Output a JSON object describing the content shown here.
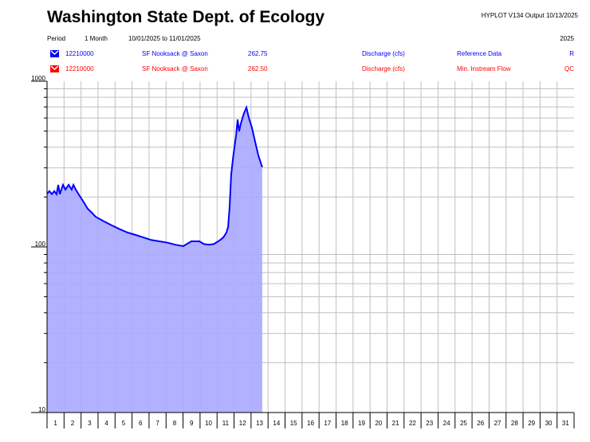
{
  "header": {
    "title": "Washington State Dept. of Ecology",
    "program": "HYPLOT V134  Output 10/13/2025",
    "period_label": "Period",
    "period_value": "1 Month",
    "date_range": "10/01/2025  to  11/01/2025",
    "year": "2025"
  },
  "legend": [
    {
      "site": "12210000",
      "name": "SF Nooksack @ Saxon",
      "value": "262.75",
      "param": "Discharge (cfs)",
      "type": "Reference Data",
      "code": "R",
      "color": "#0000ff"
    },
    {
      "site": "12210000",
      "name": "SF Nooksack @ Saxon",
      "value": "262.50",
      "param": "Discharge (cfs)",
      "type": "Min. Instream Flow",
      "code": "QC",
      "color": "#ff0000"
    }
  ],
  "chart_data": {
    "type": "area",
    "yscale": "log",
    "ylim": [
      10,
      1000
    ],
    "xlim": [
      0,
      31
    ],
    "ytick_labels": [
      "1000",
      "100",
      "10"
    ],
    "xtick_labels": [
      "1",
      "2",
      "3",
      "4",
      "5",
      "6",
      "7",
      "8",
      "9",
      "10",
      "11",
      "12",
      "13",
      "14",
      "15",
      "16",
      "17",
      "18",
      "19",
      "20",
      "21",
      "22",
      "23",
      "24",
      "25",
      "26",
      "27",
      "28",
      "29",
      "30",
      "31"
    ],
    "series": [
      {
        "name": "SF Nooksack @ Saxon Discharge (cfs)",
        "color": "#0000ff",
        "fill": "#a8a8ff",
        "x": [
          0,
          0.14,
          0.28,
          0.42,
          0.56,
          0.66,
          0.75,
          0.94,
          1.08,
          1.27,
          1.45,
          1.55,
          1.69,
          1.92,
          2.16,
          2.39,
          2.63,
          2.86,
          3.33,
          3.8,
          4.27,
          4.74,
          5.21,
          5.68,
          6.14,
          6.61,
          7.08,
          7.55,
          8.02,
          8.21,
          8.49,
          8.96,
          9.24,
          9.52,
          9.8,
          10.13,
          10.37,
          10.55,
          10.65,
          10.74,
          10.83,
          10.93,
          11.02,
          11.12,
          11.21,
          11.3,
          11.4,
          11.59,
          11.73,
          11.87,
          12.05,
          12.24,
          12.43,
          12.66
        ],
        "y": [
          210,
          217,
          208,
          217,
          208,
          237,
          208,
          237,
          222,
          237,
          222,
          237,
          222,
          203,
          186,
          170,
          161,
          152,
          143,
          135,
          128,
          122,
          118,
          114,
          110,
          108,
          106,
          103,
          101,
          104,
          108,
          108,
          104,
          103,
          104,
          109,
          114,
          122,
          132,
          174,
          271,
          338,
          399,
          471,
          588,
          498,
          556,
          643,
          694,
          601,
          526,
          431,
          357,
          303
        ]
      }
    ]
  }
}
